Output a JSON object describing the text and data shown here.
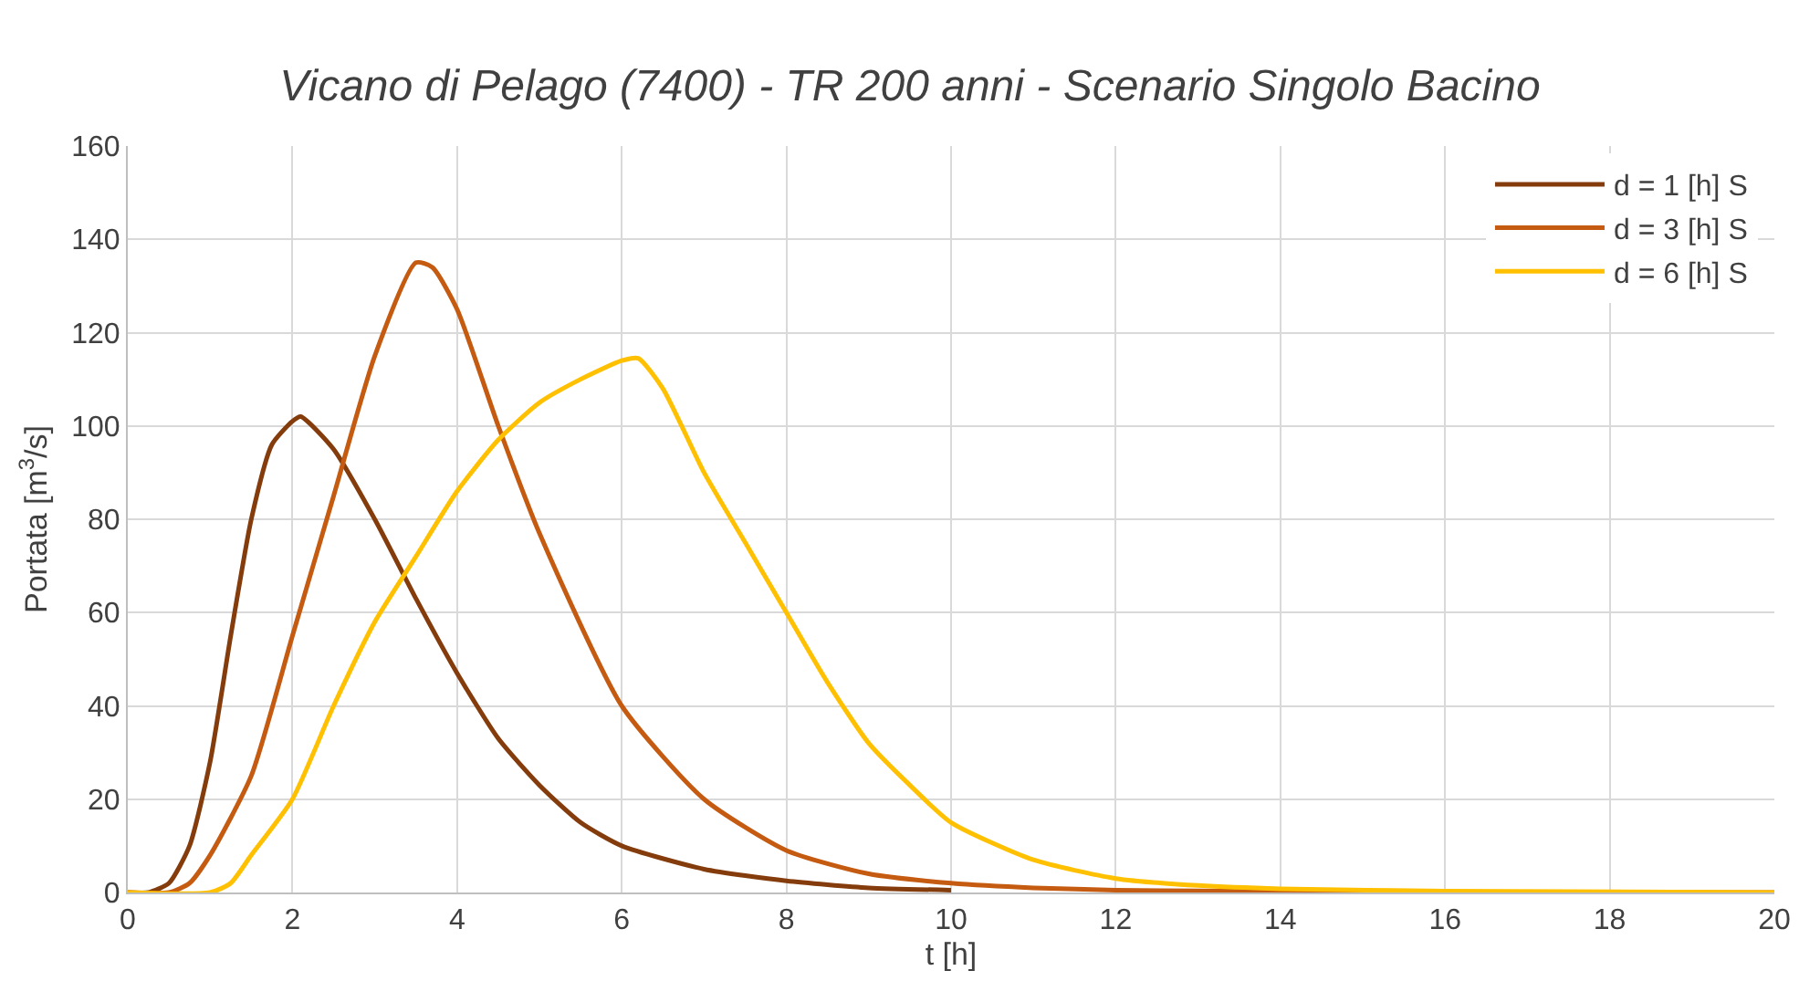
{
  "chart_data": {
    "type": "line",
    "title": "Vicano di Pelago (7400) - TR 200 anni - Scenario Singolo Bacino",
    "xlabel": "t [h]",
    "ylabel": "Portata [m$^{3}$/s]",
    "xlim": [
      0,
      20
    ],
    "xticks": [
      0,
      2,
      4,
      6,
      8,
      10,
      12,
      14,
      16,
      18,
      20
    ],
    "ylim": [
      0,
      160
    ],
    "yticks": [
      0,
      20,
      40,
      60,
      80,
      100,
      120,
      140,
      160
    ],
    "grid": true,
    "legend": "top right",
    "marker": "none",
    "line_style": "solid",
    "series": [
      {
        "name": "d = 1 [h] S",
        "color": "#843c0c",
        "x": [
          0,
          0.25,
          0.5,
          0.75,
          1,
          1.25,
          1.5,
          1.75,
          2,
          2.1,
          2.5,
          3,
          3.5,
          4,
          4.5,
          5,
          5.5,
          6,
          7,
          8,
          9,
          10
        ],
        "values": [
          0,
          0,
          2,
          10,
          28,
          55,
          80,
          96,
          101,
          102,
          95,
          80,
          63,
          47,
          33,
          23,
          15,
          10,
          5,
          2.5,
          1,
          0.5
        ]
      },
      {
        "name": "d = 3 [h] S",
        "color": "#c55a11",
        "x": [
          0,
          0.5,
          0.75,
          1,
          1.5,
          2,
          2.5,
          3,
          3.5,
          3.7,
          4,
          4.5,
          5,
          6,
          7,
          8,
          9,
          10,
          11,
          12,
          14,
          16,
          20
        ],
        "values": [
          0,
          0,
          2,
          8,
          25,
          55,
          85,
          115,
          135,
          134,
          125,
          100,
          77,
          40,
          20,
          9,
          4,
          2,
          1,
          0.5,
          0.2,
          0,
          0
        ]
      },
      {
        "name": "d = 6 [h] S",
        "color": "#ffc000",
        "x": [
          0,
          1,
          1.25,
          1.5,
          2,
          2.5,
          3,
          3.5,
          4,
          4.5,
          5,
          5.5,
          6,
          6.2,
          6.5,
          7,
          7.5,
          8,
          8.5,
          9,
          9.5,
          10,
          11,
          12,
          13,
          14,
          16,
          20
        ],
        "values": [
          0,
          0,
          2,
          8,
          20,
          40,
          58,
          72,
          86,
          97,
          105,
          110,
          114,
          114.5,
          108,
          90,
          75,
          60,
          45,
          32,
          23,
          15,
          7,
          3,
          1.5,
          0.8,
          0.3,
          0
        ]
      }
    ]
  }
}
